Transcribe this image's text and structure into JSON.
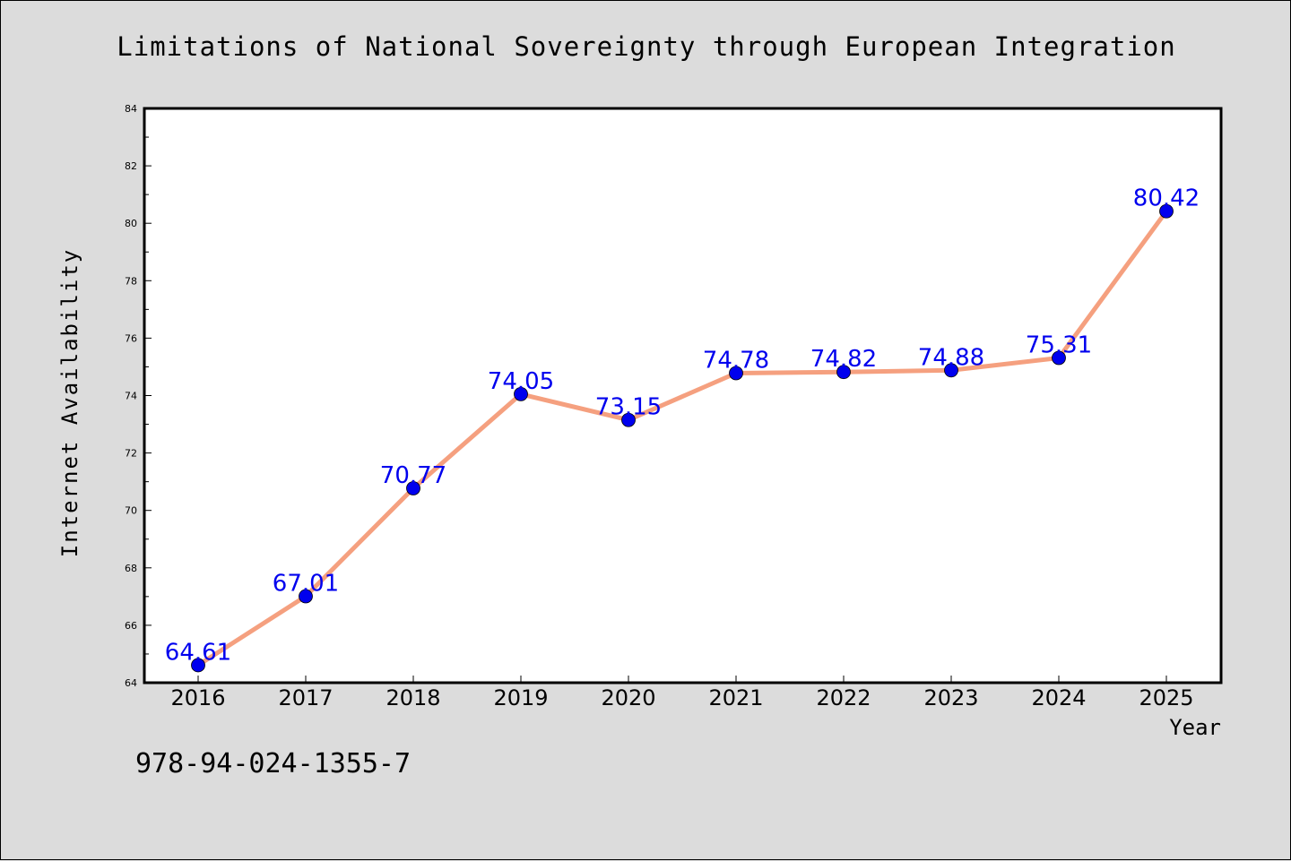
{
  "chart_data": {
    "type": "line",
    "title": "Limitations of National Sovereignty through European Integration",
    "xlabel": "Year",
    "ylabel": "Internet Availability",
    "categories": [
      "2016",
      "2017",
      "2018",
      "2019",
      "2020",
      "2021",
      "2022",
      "2023",
      "2024",
      "2025"
    ],
    "values": [
      64.61,
      67.01,
      70.77,
      74.05,
      73.15,
      74.78,
      74.82,
      74.88,
      75.31,
      80.42
    ],
    "data_labels": [
      "64.61",
      "67.01",
      "70.77",
      "74.05",
      "73.15",
      "74.78",
      "74.82",
      "74.88",
      "75.31",
      "80.42"
    ],
    "ylim": [
      64,
      84
    ],
    "yticks": [
      "64",
      "66",
      "68",
      "70",
      "72",
      "74",
      "76",
      "78",
      "80",
      "82",
      "84"
    ],
    "grid": false,
    "colors": {
      "line": "#f5a07f",
      "marker": "#0000ee",
      "label": "#0000ee",
      "background": "#dcdcdc",
      "plot_bg": "#ffffff"
    }
  },
  "footer": {
    "isbn": "978-94-024-1355-7"
  }
}
